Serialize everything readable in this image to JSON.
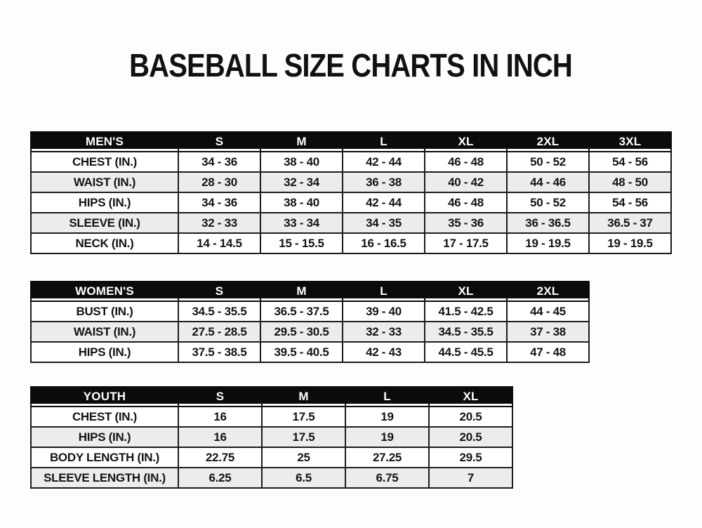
{
  "title": "BASEBALL SIZE CHARTS IN INCH",
  "tables": [
    {
      "name": "mens",
      "header": [
        "MEN'S",
        "S",
        "M",
        "L",
        "XL",
        "2XL",
        "3XL"
      ],
      "rows": [
        [
          "CHEST (IN.)",
          "34 - 36",
          "38 - 40",
          "42 - 44",
          "46 - 48",
          "50 - 52",
          "54 - 56"
        ],
        [
          "WAIST (IN.)",
          "28 - 30",
          "32 - 34",
          "36 - 38",
          "40 - 42",
          "44 - 46",
          "48 - 50"
        ],
        [
          "HIPS (IN.)",
          "34 - 36",
          "38 - 40",
          "42 - 44",
          "46 - 48",
          "50 - 52",
          "54 - 56"
        ],
        [
          "SLEEVE (IN.)",
          "32 - 33",
          "33 - 34",
          "34 - 35",
          "35 - 36",
          "36 - 36.5",
          "36.5 - 37"
        ],
        [
          "NECK (IN.)",
          "14 - 14.5",
          "15 - 15.5",
          "16 - 16.5",
          "17 - 17.5",
          "19 - 19.5",
          "19 - 19.5"
        ]
      ]
    },
    {
      "name": "womens",
      "header": [
        "WOMEN'S",
        "S",
        "M",
        "L",
        "XL",
        "2XL"
      ],
      "rows": [
        [
          "BUST (IN.)",
          "34.5 - 35.5",
          "36.5 - 37.5",
          "39 - 40",
          "41.5 - 42.5",
          "44 - 45"
        ],
        [
          "WAIST (IN.)",
          "27.5 - 28.5",
          "29.5 - 30.5",
          "32 - 33",
          "34.5 - 35.5",
          "37 - 38"
        ],
        [
          "HIPS (IN.)",
          "37.5 - 38.5",
          "39.5 - 40.5",
          "42 - 43",
          "44.5 - 45.5",
          "47 - 48"
        ]
      ]
    },
    {
      "name": "youth",
      "header": [
        "YOUTH",
        "S",
        "M",
        "L",
        "XL"
      ],
      "rows": [
        [
          "CHEST (IN.)",
          "16",
          "17.5",
          "19",
          "20.5"
        ],
        [
          "HIPS (IN.)",
          "16",
          "17.5",
          "19",
          "20.5"
        ],
        [
          "BODY LENGTH (IN.)",
          "22.75",
          "25",
          "27.25",
          "29.5"
        ],
        [
          "SLEEVE LENGTH (IN.)",
          "6.25",
          "6.5",
          "6.75",
          "7"
        ]
      ]
    }
  ],
  "colors": {
    "page_background": "#fdfdfd",
    "header_bg": "#0b0b0b",
    "header_text": "#ffffff",
    "row_alt_bg": "#ececea",
    "border": "#1c1c1c",
    "text": "#141414"
  }
}
